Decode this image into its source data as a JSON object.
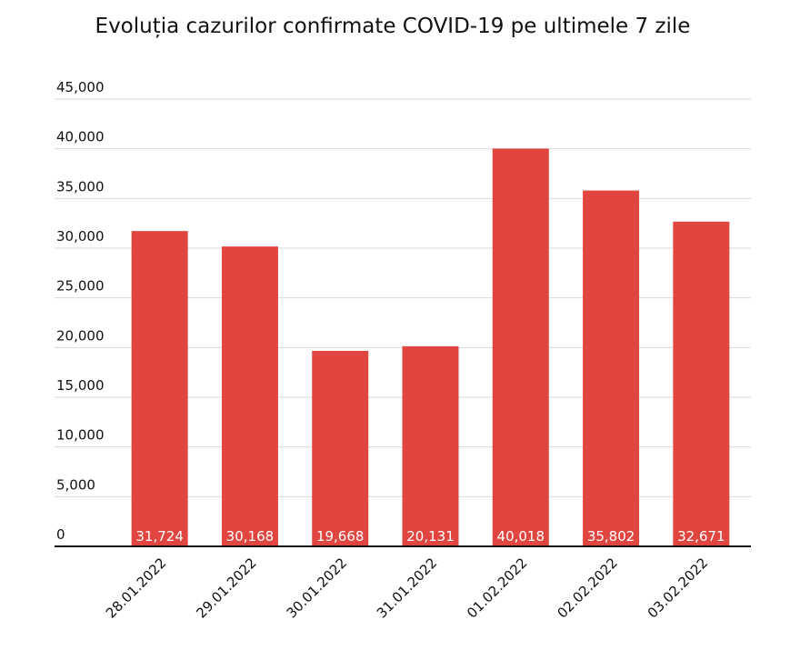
{
  "chart_data": {
    "type": "bar",
    "title": "Evoluția cazurilor confirmate COVID-19 pe ultimele 7 zile",
    "categories": [
      "28.01.2022",
      "29.01.2022",
      "30.01.2022",
      "31.01.2022",
      "01.02.2022",
      "02.02.2022",
      "03.02.2022"
    ],
    "values": [
      31724,
      30168,
      19668,
      20131,
      40018,
      35802,
      32671
    ],
    "value_labels": [
      "31,724",
      "30,168",
      "19,668",
      "20,131",
      "40,018",
      "35,802",
      "32,671"
    ],
    "color": "#e0463f",
    "ylim": [
      0,
      45000
    ],
    "yticks": [
      0,
      {
        "value": 5000,
        "label": "5,000"
      },
      {
        "value": 10000,
        "label": "10,000"
      },
      {
        "value": 15000,
        "label": "15,000"
      },
      {
        "value": 20000,
        "label": "20,000"
      },
      {
        "value": 25000,
        "label": "25,000"
      },
      {
        "value": 30000,
        "label": "30,000"
      },
      {
        "value": 35000,
        "label": "35,000"
      },
      {
        "value": 40000,
        "label": "40,000"
      },
      {
        "value": 45000,
        "label": "45,000"
      }
    ],
    "grid": true
  }
}
